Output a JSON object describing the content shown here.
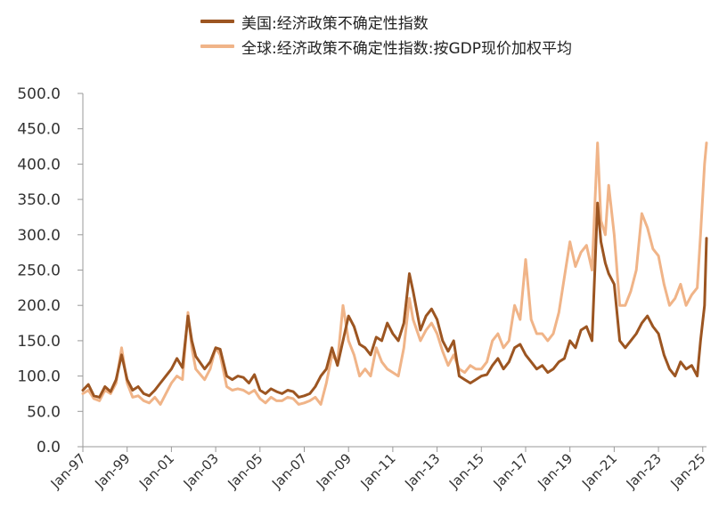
{
  "chart_data": {
    "type": "line",
    "title": "",
    "xlabel": "",
    "ylabel": "",
    "ylim": [
      0,
      500
    ],
    "yticks": [
      "0.0",
      "50.0",
      "100.0",
      "150.0",
      "200.0",
      "250.0",
      "300.0",
      "350.0",
      "400.0",
      "450.0",
      "500.0"
    ],
    "xlim": [
      1997.0,
      2025.17
    ],
    "xtick_labels": [
      "Jan-97",
      "Jan-99",
      "Jan-01",
      "Jan-03",
      "Jan-05",
      "Jan-07",
      "Jan-09",
      "Jan-11",
      "Jan-13",
      "Jan-15",
      "Jan-17",
      "Jan-19",
      "Jan-21",
      "Jan-23",
      "Jan-25"
    ],
    "grid": false,
    "legend_position": "top",
    "series": [
      {
        "name": "美国:经济政策不确定性指数",
        "color": "#9c5521",
        "points": [
          [
            1997.0,
            80
          ],
          [
            1997.25,
            88
          ],
          [
            1997.5,
            72
          ],
          [
            1997.75,
            70
          ],
          [
            1998.0,
            85
          ],
          [
            1998.25,
            78
          ],
          [
            1998.5,
            95
          ],
          [
            1998.75,
            130
          ],
          [
            1999.0,
            95
          ],
          [
            1999.25,
            80
          ],
          [
            1999.5,
            85
          ],
          [
            1999.75,
            75
          ],
          [
            2000.0,
            72
          ],
          [
            2000.25,
            80
          ],
          [
            2000.5,
            90
          ],
          [
            2000.75,
            100
          ],
          [
            2001.0,
            110
          ],
          [
            2001.25,
            125
          ],
          [
            2001.5,
            112
          ],
          [
            2001.75,
            185
          ],
          [
            2001.92,
            150
          ],
          [
            2002.1,
            128
          ],
          [
            2002.5,
            110
          ],
          [
            2002.75,
            120
          ],
          [
            2003.0,
            140
          ],
          [
            2003.2,
            138
          ],
          [
            2003.5,
            100
          ],
          [
            2003.75,
            95
          ],
          [
            2004.0,
            100
          ],
          [
            2004.25,
            98
          ],
          [
            2004.5,
            90
          ],
          [
            2004.75,
            102
          ],
          [
            2005.0,
            80
          ],
          [
            2005.25,
            75
          ],
          [
            2005.5,
            82
          ],
          [
            2005.75,
            78
          ],
          [
            2006.0,
            75
          ],
          [
            2006.25,
            80
          ],
          [
            2006.5,
            78
          ],
          [
            2006.75,
            70
          ],
          [
            2007.0,
            72
          ],
          [
            2007.25,
            75
          ],
          [
            2007.5,
            85
          ],
          [
            2007.75,
            100
          ],
          [
            2008.0,
            110
          ],
          [
            2008.25,
            140
          ],
          [
            2008.5,
            115
          ],
          [
            2008.75,
            150
          ],
          [
            2009.0,
            185
          ],
          [
            2009.25,
            170
          ],
          [
            2009.5,
            145
          ],
          [
            2009.75,
            140
          ],
          [
            2010.0,
            130
          ],
          [
            2010.25,
            155
          ],
          [
            2010.5,
            150
          ],
          [
            2010.75,
            175
          ],
          [
            2011.0,
            160
          ],
          [
            2011.25,
            150
          ],
          [
            2011.5,
            175
          ],
          [
            2011.75,
            245
          ],
          [
            2011.92,
            220
          ],
          [
            2012.25,
            165
          ],
          [
            2012.5,
            185
          ],
          [
            2012.75,
            195
          ],
          [
            2013.0,
            180
          ],
          [
            2013.25,
            150
          ],
          [
            2013.5,
            135
          ],
          [
            2013.75,
            150
          ],
          [
            2014.0,
            100
          ],
          [
            2014.25,
            95
          ],
          [
            2014.5,
            90
          ],
          [
            2014.75,
            95
          ],
          [
            2015.0,
            100
          ],
          [
            2015.25,
            102
          ],
          [
            2015.5,
            115
          ],
          [
            2015.75,
            125
          ],
          [
            2016.0,
            110
          ],
          [
            2016.25,
            120
          ],
          [
            2016.5,
            140
          ],
          [
            2016.75,
            145
          ],
          [
            2017.0,
            130
          ],
          [
            2017.25,
            120
          ],
          [
            2017.5,
            110
          ],
          [
            2017.75,
            115
          ],
          [
            2018.0,
            105
          ],
          [
            2018.25,
            110
          ],
          [
            2018.5,
            120
          ],
          [
            2018.75,
            125
          ],
          [
            2019.0,
            150
          ],
          [
            2019.25,
            140
          ],
          [
            2019.5,
            165
          ],
          [
            2019.75,
            170
          ],
          [
            2020.0,
            150
          ],
          [
            2020.25,
            345
          ],
          [
            2020.4,
            290
          ],
          [
            2020.6,
            260
          ],
          [
            2020.75,
            245
          ],
          [
            2021.0,
            230
          ],
          [
            2021.25,
            150
          ],
          [
            2021.5,
            140
          ],
          [
            2021.75,
            150
          ],
          [
            2022.0,
            160
          ],
          [
            2022.25,
            175
          ],
          [
            2022.5,
            185
          ],
          [
            2022.75,
            170
          ],
          [
            2023.0,
            160
          ],
          [
            2023.25,
            130
          ],
          [
            2023.5,
            110
          ],
          [
            2023.75,
            100
          ],
          [
            2024.0,
            120
          ],
          [
            2024.25,
            110
          ],
          [
            2024.5,
            115
          ],
          [
            2024.75,
            100
          ],
          [
            2024.9,
            150
          ],
          [
            2025.08,
            200
          ],
          [
            2025.17,
            295
          ]
        ]
      },
      {
        "name": "全球:经济政策不确定性指数:按GDP现价加权平均",
        "color": "#f0b488",
        "points": [
          [
            1997.0,
            75
          ],
          [
            1997.25,
            80
          ],
          [
            1997.5,
            68
          ],
          [
            1997.75,
            65
          ],
          [
            1998.0,
            80
          ],
          [
            1998.25,
            75
          ],
          [
            1998.5,
            90
          ],
          [
            1998.75,
            140
          ],
          [
            1999.0,
            90
          ],
          [
            1999.25,
            70
          ],
          [
            1999.5,
            72
          ],
          [
            1999.75,
            65
          ],
          [
            2000.0,
            62
          ],
          [
            2000.25,
            70
          ],
          [
            2000.5,
            60
          ],
          [
            2000.75,
            75
          ],
          [
            2001.0,
            90
          ],
          [
            2001.25,
            100
          ],
          [
            2001.5,
            95
          ],
          [
            2001.75,
            190
          ],
          [
            2001.92,
            140
          ],
          [
            2002.1,
            110
          ],
          [
            2002.5,
            95
          ],
          [
            2002.75,
            110
          ],
          [
            2003.0,
            140
          ],
          [
            2003.2,
            130
          ],
          [
            2003.5,
            85
          ],
          [
            2003.75,
            80
          ],
          [
            2004.0,
            82
          ],
          [
            2004.25,
            80
          ],
          [
            2004.5,
            75
          ],
          [
            2004.75,
            80
          ],
          [
            2005.0,
            68
          ],
          [
            2005.25,
            62
          ],
          [
            2005.5,
            70
          ],
          [
            2005.75,
            65
          ],
          [
            2006.0,
            65
          ],
          [
            2006.25,
            70
          ],
          [
            2006.5,
            68
          ],
          [
            2006.75,
            60
          ],
          [
            2007.0,
            62
          ],
          [
            2007.25,
            65
          ],
          [
            2007.5,
            70
          ],
          [
            2007.75,
            60
          ],
          [
            2008.0,
            90
          ],
          [
            2008.25,
            130
          ],
          [
            2008.5,
            120
          ],
          [
            2008.75,
            200
          ],
          [
            2009.0,
            150
          ],
          [
            2009.25,
            130
          ],
          [
            2009.5,
            100
          ],
          [
            2009.75,
            110
          ],
          [
            2010.0,
            100
          ],
          [
            2010.25,
            140
          ],
          [
            2010.5,
            120
          ],
          [
            2010.75,
            110
          ],
          [
            2011.0,
            105
          ],
          [
            2011.25,
            100
          ],
          [
            2011.5,
            140
          ],
          [
            2011.75,
            210
          ],
          [
            2011.92,
            180
          ],
          [
            2012.25,
            150
          ],
          [
            2012.5,
            165
          ],
          [
            2012.75,
            175
          ],
          [
            2013.0,
            160
          ],
          [
            2013.25,
            135
          ],
          [
            2013.5,
            115
          ],
          [
            2013.75,
            130
          ],
          [
            2014.0,
            110
          ],
          [
            2014.25,
            105
          ],
          [
            2014.5,
            115
          ],
          [
            2014.75,
            110
          ],
          [
            2015.0,
            110
          ],
          [
            2015.25,
            120
          ],
          [
            2015.5,
            150
          ],
          [
            2015.75,
            160
          ],
          [
            2016.0,
            140
          ],
          [
            2016.25,
            150
          ],
          [
            2016.5,
            200
          ],
          [
            2016.75,
            180
          ],
          [
            2017.0,
            265
          ],
          [
            2017.25,
            180
          ],
          [
            2017.5,
            160
          ],
          [
            2017.75,
            160
          ],
          [
            2018.0,
            150
          ],
          [
            2018.25,
            160
          ],
          [
            2018.5,
            190
          ],
          [
            2018.75,
            240
          ],
          [
            2019.0,
            290
          ],
          [
            2019.25,
            255
          ],
          [
            2019.5,
            275
          ],
          [
            2019.75,
            285
          ],
          [
            2020.0,
            250
          ],
          [
            2020.25,
            430
          ],
          [
            2020.4,
            320
          ],
          [
            2020.6,
            300
          ],
          [
            2020.75,
            370
          ],
          [
            2021.0,
            300
          ],
          [
            2021.25,
            200
          ],
          [
            2021.5,
            200
          ],
          [
            2021.75,
            220
          ],
          [
            2022.0,
            250
          ],
          [
            2022.25,
            330
          ],
          [
            2022.5,
            310
          ],
          [
            2022.75,
            280
          ],
          [
            2023.0,
            270
          ],
          [
            2023.25,
            230
          ],
          [
            2023.5,
            200
          ],
          [
            2023.75,
            210
          ],
          [
            2024.0,
            230
          ],
          [
            2024.25,
            200
          ],
          [
            2024.5,
            215
          ],
          [
            2024.75,
            225
          ],
          [
            2024.9,
            300
          ],
          [
            2025.08,
            400
          ],
          [
            2025.17,
            430
          ]
        ]
      }
    ]
  }
}
